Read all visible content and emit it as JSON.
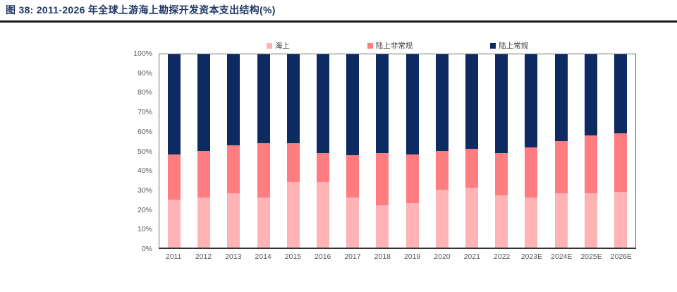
{
  "header": {
    "title": "图 38:  2011-2026 年全球上游海上勘探开发资本支出结构(%)"
  },
  "colors": {
    "title_text": "#1F3864",
    "divider": "#1A1A1A",
    "axis_text": "#595959",
    "legend_text": "#404040",
    "plot_border": "#6E6E6E",
    "offshore_pink": "#FFB3B5",
    "onshore_unconventional_salmon": "#FF7C80",
    "onshore_conventional_navy": "#0D2A63"
  },
  "chart_data": {
    "type": "bar",
    "stacked": true,
    "title": "2011-2026 年全球上游海上勘探开发资本支出结构(%)",
    "categories": [
      "2011",
      "2012",
      "2013",
      "2014",
      "2015",
      "2016",
      "2017",
      "2018",
      "2019",
      "2020",
      "2021",
      "2022",
      "2023E",
      "2024E",
      "2025E",
      "2026E"
    ],
    "series": [
      {
        "name": "海上",
        "color": "#FFB3B5",
        "values": [
          25,
          26,
          28,
          26,
          34,
          34,
          26,
          22,
          23,
          30,
          31,
          27,
          26,
          28,
          28,
          29
        ]
      },
      {
        "name": "陆上非常规",
        "color": "#FF7C80",
        "values": [
          23,
          24,
          25,
          28,
          20,
          15,
          22,
          27,
          25,
          20,
          20,
          22,
          26,
          27,
          30,
          30
        ]
      },
      {
        "name": "陆上常规",
        "color": "#0D2A63",
        "values": [
          52,
          50,
          47,
          46,
          46,
          51,
          52,
          51,
          52,
          50,
          49,
          51,
          48,
          45,
          42,
          41
        ]
      }
    ],
    "xlabel": "",
    "ylabel": "",
    "ylim": [
      0,
      100
    ],
    "yticks": [
      "0%",
      "10%",
      "20%",
      "30%",
      "40%",
      "50%",
      "60%",
      "70%",
      "80%",
      "90%",
      "100%"
    ],
    "legend_position": "top",
    "grid": false
  }
}
